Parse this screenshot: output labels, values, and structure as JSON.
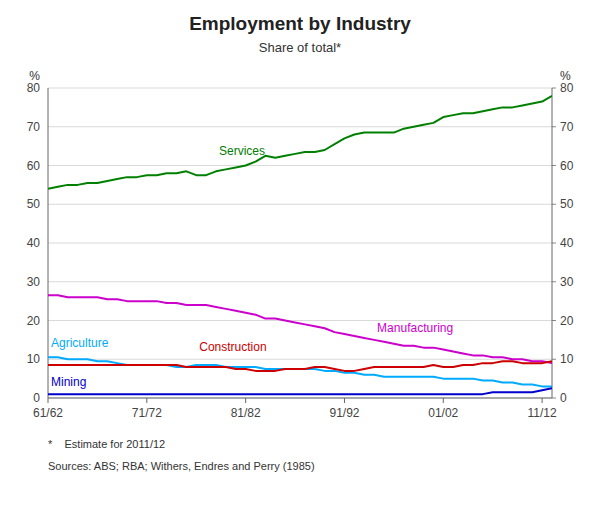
{
  "chart_data": {
    "type": "line",
    "title": "Employment by Industry",
    "subtitle": "Share of total*",
    "footnote": "*    Estimate for 2011/12",
    "sources": "Sources: ABS; RBA; Withers, Endres and Perry (1985)",
    "ylabel": "%",
    "y2label": "%",
    "x": [
      1961,
      1962,
      1963,
      1964,
      1965,
      1966,
      1967,
      1968,
      1969,
      1970,
      1971,
      1972,
      1973,
      1974,
      1975,
      1976,
      1977,
      1978,
      1979,
      1980,
      1981,
      1982,
      1983,
      1984,
      1985,
      1986,
      1987,
      1988,
      1989,
      1990,
      1991,
      1992,
      1993,
      1994,
      1995,
      1996,
      1997,
      1998,
      1999,
      2000,
      2001,
      2002,
      2003,
      2004,
      2005,
      2006,
      2007,
      2008,
      2009,
      2010,
      2011,
      2012
    ],
    "xlim": [
      1961,
      2012
    ],
    "xticks": [
      {
        "value": 1961,
        "label": "61/62"
      },
      {
        "value": 1971,
        "label": "71/72"
      },
      {
        "value": 1981,
        "label": "81/82"
      },
      {
        "value": 1991,
        "label": "91/92"
      },
      {
        "value": 2001,
        "label": "01/02"
      },
      {
        "value": 2011,
        "label": "11/12"
      }
    ],
    "ylim": [
      0,
      80
    ],
    "yticks": [
      0,
      10,
      20,
      30,
      40,
      50,
      60,
      70,
      80
    ],
    "y2lim": [
      0,
      80
    ],
    "y2ticks": [
      0,
      10,
      20,
      30,
      40,
      50,
      60,
      70,
      80
    ],
    "grid": true,
    "series": [
      {
        "name": "Services",
        "color": "#008000",
        "values": [
          54.0,
          54.5,
          55.0,
          55.0,
          55.5,
          55.5,
          56.0,
          56.5,
          57.0,
          57.0,
          57.5,
          57.5,
          58.0,
          58.0,
          58.5,
          57.5,
          57.5,
          58.5,
          59.0,
          59.5,
          60.0,
          61.0,
          62.5,
          62.0,
          62.5,
          63.0,
          63.5,
          63.5,
          64.0,
          65.5,
          67.0,
          68.0,
          68.5,
          68.5,
          68.5,
          68.5,
          69.5,
          70.0,
          70.5,
          71.0,
          72.5,
          73.0,
          73.5,
          73.5,
          74.0,
          74.5,
          75.0,
          75.0,
          75.5,
          76.0,
          76.5,
          78.0
        ]
      },
      {
        "name": "Manufacturing",
        "color": "#cc00cc",
        "values": [
          26.5,
          26.5,
          26.0,
          26.0,
          26.0,
          26.0,
          25.5,
          25.5,
          25.0,
          25.0,
          25.0,
          25.0,
          24.5,
          24.5,
          24.0,
          24.0,
          24.0,
          23.5,
          23.0,
          22.5,
          22.0,
          21.5,
          20.5,
          20.5,
          20.0,
          19.5,
          19.0,
          18.5,
          18.0,
          17.0,
          16.5,
          16.0,
          15.5,
          15.0,
          14.5,
          14.0,
          13.5,
          13.5,
          13.0,
          13.0,
          12.5,
          12.0,
          11.5,
          11.0,
          11.0,
          10.5,
          10.5,
          10.0,
          10.0,
          9.5,
          9.5,
          9.0
        ]
      },
      {
        "name": "Agriculture",
        "color": "#00aaff",
        "values": [
          10.5,
          10.5,
          10.0,
          10.0,
          10.0,
          9.5,
          9.5,
          9.0,
          8.5,
          8.5,
          8.5,
          8.5,
          8.5,
          8.0,
          8.0,
          8.5,
          8.5,
          8.5,
          8.0,
          8.0,
          8.0,
          8.0,
          7.5,
          7.5,
          7.5,
          7.5,
          7.5,
          7.5,
          7.0,
          7.0,
          6.5,
          6.5,
          6.0,
          6.0,
          5.5,
          5.5,
          5.5,
          5.5,
          5.5,
          5.5,
          5.0,
          5.0,
          5.0,
          5.0,
          4.5,
          4.5,
          4.0,
          4.0,
          3.5,
          3.5,
          3.0,
          3.0
        ]
      },
      {
        "name": "Construction",
        "color": "#cc0000",
        "values": [
          8.5,
          8.5,
          8.5,
          8.5,
          8.5,
          8.5,
          8.5,
          8.5,
          8.5,
          8.5,
          8.5,
          8.5,
          8.5,
          8.5,
          8.0,
          8.0,
          8.0,
          8.0,
          8.0,
          7.5,
          7.5,
          7.0,
          7.0,
          7.0,
          7.5,
          7.5,
          7.5,
          8.0,
          8.0,
          7.5,
          7.0,
          7.0,
          7.5,
          8.0,
          8.0,
          8.0,
          8.0,
          8.0,
          8.0,
          8.5,
          8.0,
          8.0,
          8.5,
          8.5,
          9.0,
          9.0,
          9.5,
          9.5,
          9.0,
          9.0,
          9.0,
          9.5
        ]
      },
      {
        "name": "Mining",
        "color": "#0000cc",
        "values": [
          1.0,
          1.0,
          1.0,
          1.0,
          1.0,
          1.0,
          1.0,
          1.0,
          1.0,
          1.0,
          1.0,
          1.0,
          1.0,
          1.0,
          1.0,
          1.0,
          1.0,
          1.0,
          1.0,
          1.0,
          1.0,
          1.0,
          1.0,
          1.0,
          1.0,
          1.0,
          1.0,
          1.0,
          1.0,
          1.0,
          1.0,
          1.0,
          1.0,
          1.0,
          1.0,
          1.0,
          1.0,
          1.0,
          1.0,
          1.0,
          1.0,
          1.0,
          1.0,
          1.0,
          1.0,
          1.5,
          1.5,
          1.5,
          1.5,
          1.5,
          2.0,
          2.5
        ]
      }
    ]
  }
}
